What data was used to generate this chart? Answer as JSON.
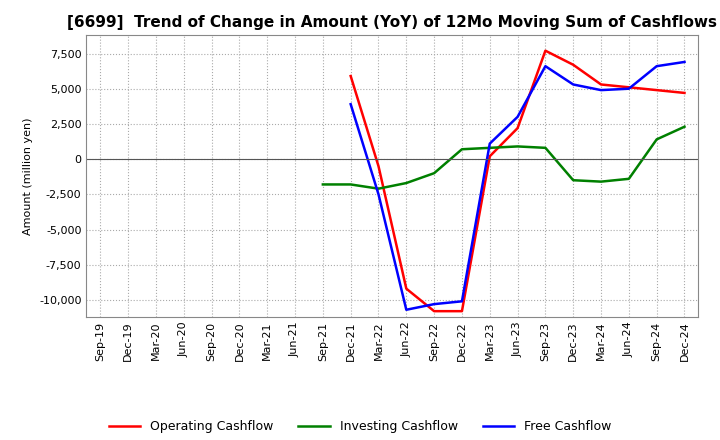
{
  "title": "[6699]  Trend of Change in Amount (YoY) of 12Mo Moving Sum of Cashflows",
  "ylabel": "Amount (million yen)",
  "ylim": [
    -11200,
    8800
  ],
  "yticks": [
    -10000,
    -7500,
    -5000,
    -2500,
    0,
    2500,
    5000,
    7500
  ],
  "x_labels": [
    "Sep-19",
    "Dec-19",
    "Mar-20",
    "Jun-20",
    "Sep-20",
    "Dec-20",
    "Mar-21",
    "Jun-21",
    "Sep-21",
    "Dec-21",
    "Mar-22",
    "Jun-22",
    "Sep-22",
    "Dec-22",
    "Mar-23",
    "Jun-23",
    "Sep-23",
    "Dec-23",
    "Mar-24",
    "Jun-24",
    "Sep-24",
    "Dec-24"
  ],
  "operating": [
    null,
    null,
    null,
    null,
    null,
    null,
    null,
    null,
    null,
    5900,
    -500,
    -9200,
    -10800,
    -10800,
    200,
    2200,
    7700,
    6700,
    5300,
    5100,
    4900,
    4700
  ],
  "investing": [
    null,
    null,
    null,
    null,
    null,
    null,
    null,
    null,
    -1800,
    -1800,
    -2100,
    -1700,
    -1000,
    700,
    800,
    900,
    800,
    -1500,
    -1600,
    -1400,
    1400,
    2300
  ],
  "free": [
    null,
    null,
    null,
    null,
    null,
    null,
    null,
    null,
    null,
    3900,
    -2500,
    -10700,
    -10300,
    -10100,
    1100,
    3000,
    6600,
    5300,
    4900,
    5000,
    6600,
    6900
  ],
  "operating_color": "#FF0000",
  "investing_color": "#008000",
  "free_color": "#0000FF",
  "background_color": "#FFFFFF",
  "grid_color": "#AAAAAA",
  "title_fontsize": 11,
  "legend_fontsize": 9,
  "axis_fontsize": 8
}
